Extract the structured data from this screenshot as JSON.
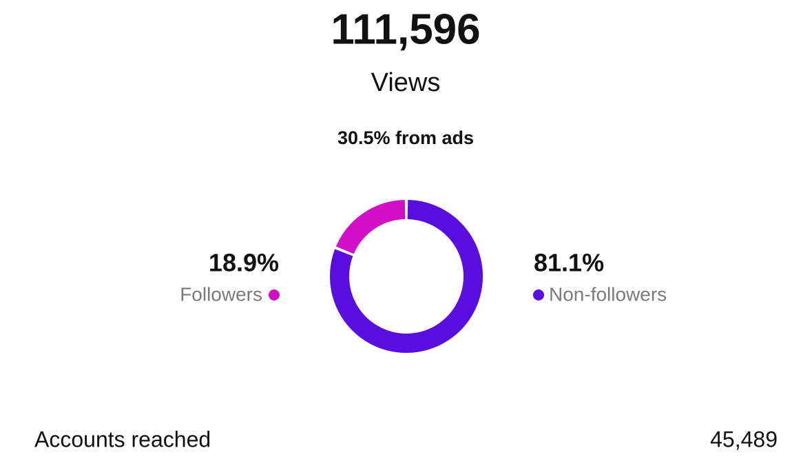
{
  "header": {
    "views": "111,596",
    "views_label": "Views",
    "ads_note": "30.5% from ads"
  },
  "chart_data": {
    "type": "pie",
    "categories": [
      "Followers",
      "Non-followers"
    ],
    "values": [
      18.9,
      81.1
    ],
    "value_labels": [
      "18.9%",
      "81.1%"
    ],
    "colors": [
      "#d00fc6",
      "#5a0ddf"
    ],
    "donut": true
  },
  "accounts_reached": {
    "label": "Accounts reached",
    "value": "45,489"
  }
}
